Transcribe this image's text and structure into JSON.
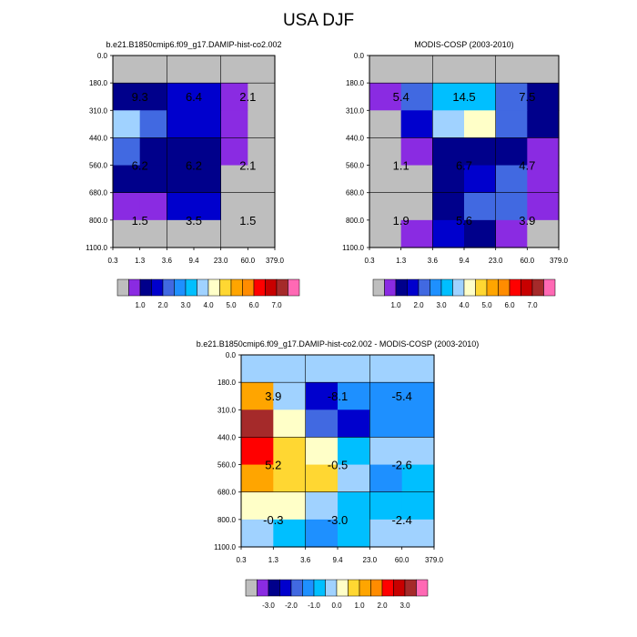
{
  "title": "USA DJF",
  "x_ticks": [
    "0.3",
    "1.3",
    "3.6",
    "9.4",
    "23.0",
    "60.0",
    "379.0"
  ],
  "y_ticks": [
    "0.0",
    "180.0",
    "310.0",
    "440.0",
    "560.0",
    "680.0",
    "800.0",
    "1100.0"
  ],
  "colors": {
    "missing": "#bebebe",
    "abs": [
      "#bebebe",
      "#8a2be2",
      "#00008b",
      "#0000cd",
      "#4169e1",
      "#1e90ff",
      "#00bfff",
      "#a0d2ff",
      "#ffffc8",
      "#ffd732",
      "#ffa500",
      "#ff8c00",
      "#ff0000",
      "#c80000",
      "#a52a2a",
      "#ff69b4"
    ],
    "diff": [
      "#bebebe",
      "#8a2be2",
      "#00008b",
      "#0000cd",
      "#4169e1",
      "#1e90ff",
      "#00bfff",
      "#a0d2ff",
      "#ffffc8",
      "#ffd732",
      "#ffa500",
      "#ff8c00",
      "#ff0000",
      "#c80000",
      "#a52a2a",
      "#ff69b4"
    ]
  },
  "colorbars": {
    "abs_labels": [
      "1.0",
      "2.0",
      "3.0",
      "4.0",
      "5.0",
      "6.0",
      "7.0"
    ],
    "diff_labels": [
      "-3.0",
      "-2.0",
      "-1.0",
      "0.0",
      "1.0",
      "2.0",
      "3.0"
    ]
  },
  "chart_data": [
    {
      "type": "heatmap",
      "title": "b.e21.B1850cmip6.f09_g17.DAMIP-hist-co2.002",
      "x_ticks": [
        "0.3",
        "1.3",
        "3.6",
        "9.4",
        "23.0",
        "60.0",
        "379.0"
      ],
      "y_ticks": [
        "0.0",
        "180.0",
        "310.0",
        "440.0",
        "560.0",
        "680.0",
        "800.0",
        "1100.0"
      ],
      "cells": [
        [
          0,
          0,
          0,
          0,
          0,
          0
        ],
        [
          2,
          2,
          3,
          3,
          1,
          0
        ],
        [
          7,
          4,
          3,
          3,
          1,
          0
        ],
        [
          4,
          2,
          2,
          2,
          1,
          0
        ],
        [
          2,
          2,
          2,
          2,
          0,
          0
        ],
        [
          1,
          1,
          3,
          3,
          0,
          0
        ],
        [
          0,
          0,
          0,
          0,
          0,
          0
        ]
      ],
      "annotations": [
        {
          "row": 1,
          "col": 0.5,
          "text": "9.3"
        },
        {
          "row": 1,
          "col": 2.5,
          "text": "6.4"
        },
        {
          "row": 1,
          "col": 4.5,
          "text": "2.1"
        },
        {
          "row": 3.5,
          "col": 0.5,
          "text": "6.2"
        },
        {
          "row": 3.5,
          "col": 2.5,
          "text": "6.2"
        },
        {
          "row": 3.5,
          "col": 4.5,
          "text": "2.1"
        },
        {
          "row": 5.5,
          "col": 0.5,
          "text": "1.5"
        },
        {
          "row": 5.5,
          "col": 2.5,
          "text": "3.5"
        },
        {
          "row": 5.5,
          "col": 4.5,
          "text": "1.5"
        }
      ]
    },
    {
      "type": "heatmap",
      "title": "MODIS-COSP (2003-2010)",
      "x_ticks": [
        "0.3",
        "1.3",
        "3.6",
        "9.4",
        "23.0",
        "60.0",
        "379.0"
      ],
      "y_ticks": [
        "0.0",
        "180.0",
        "310.0",
        "440.0",
        "560.0",
        "680.0",
        "800.0",
        "1100.0"
      ],
      "cells": [
        [
          0,
          0,
          0,
          0,
          0,
          0
        ],
        [
          1,
          4,
          6,
          6,
          4,
          2
        ],
        [
          0,
          3,
          7,
          8,
          4,
          2
        ],
        [
          0,
          1,
          2,
          2,
          2,
          1
        ],
        [
          0,
          0,
          2,
          3,
          4,
          1
        ],
        [
          0,
          0,
          2,
          4,
          4,
          1
        ],
        [
          0,
          1,
          3,
          2,
          1,
          0
        ]
      ],
      "annotations": [
        {
          "row": 1,
          "col": 0.5,
          "text": "5.4"
        },
        {
          "row": 1,
          "col": 2.5,
          "text": "14.5"
        },
        {
          "row": 1,
          "col": 4.5,
          "text": "7.5"
        },
        {
          "row": 3.5,
          "col": 0.5,
          "text": "1.1"
        },
        {
          "row": 3.5,
          "col": 2.5,
          "text": "6.7"
        },
        {
          "row": 3.5,
          "col": 4.5,
          "text": "4.7"
        },
        {
          "row": 5.5,
          "col": 0.5,
          "text": "1.9"
        },
        {
          "row": 5.5,
          "col": 2.5,
          "text": "5.6"
        },
        {
          "row": 5.5,
          "col": 4.5,
          "text": "3.9"
        }
      ]
    },
    {
      "type": "heatmap",
      "title": "b.e21.B1850cmip6.f09_g17.DAMIP-hist-co2.002 - MODIS-COSP (2003-2010)",
      "x_ticks": [
        "0.3",
        "1.3",
        "3.6",
        "9.4",
        "23.0",
        "60.0",
        "379.0"
      ],
      "y_ticks": [
        "0.0",
        "180.0",
        "310.0",
        "440.0",
        "560.0",
        "680.0",
        "800.0",
        "1100.0"
      ],
      "cells": [
        [
          7,
          7,
          7,
          7,
          7,
          7
        ],
        [
          10,
          7,
          3,
          5,
          5,
          5
        ],
        [
          14,
          8,
          4,
          3,
          5,
          5
        ],
        [
          12,
          9,
          8,
          6,
          7,
          7
        ],
        [
          10,
          9,
          9,
          7,
          5,
          6
        ],
        [
          8,
          8,
          7,
          6,
          6,
          6
        ],
        [
          7,
          6,
          5,
          6,
          7,
          7
        ]
      ],
      "annotations": [
        {
          "row": 1,
          "col": 0.5,
          "text": "3.9"
        },
        {
          "row": 1,
          "col": 2.5,
          "text": "-8.1"
        },
        {
          "row": 1,
          "col": 4.5,
          "text": "-5.4"
        },
        {
          "row": 3.5,
          "col": 0.5,
          "text": "5.2"
        },
        {
          "row": 3.5,
          "col": 2.5,
          "text": "-0.5"
        },
        {
          "row": 3.5,
          "col": 4.5,
          "text": "-2.6"
        },
        {
          "row": 5.5,
          "col": 0.5,
          "text": "-0.3"
        },
        {
          "row": 5.5,
          "col": 2.5,
          "text": "-3.0"
        },
        {
          "row": 5.5,
          "col": 4.5,
          "text": "-2.4"
        }
      ]
    }
  ]
}
